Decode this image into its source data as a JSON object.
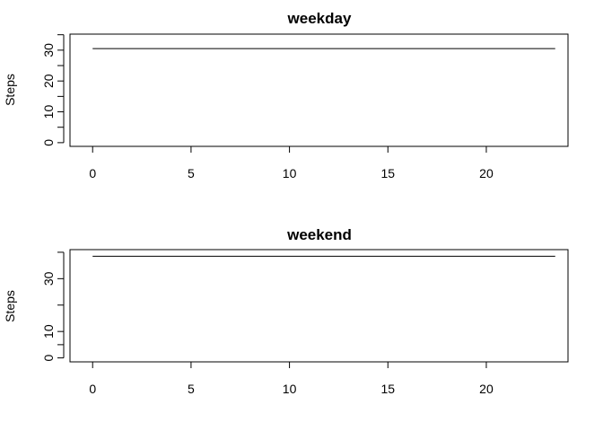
{
  "chart_data": [
    {
      "type": "line",
      "title": "weekday",
      "xlabel": "",
      "ylabel": "Steps",
      "xlim": [
        -1.15,
        24.15
      ],
      "ylim": [
        -1.2,
        35.2
      ],
      "xticks": [
        0,
        5,
        10,
        15,
        20
      ],
      "xtick_labels": [
        "0",
        "5",
        "10",
        "15",
        "20"
      ],
      "yticks": [
        0,
        5,
        10,
        15,
        20,
        25,
        30,
        35
      ],
      "ytick_labels": [
        "0",
        "",
        "10",
        "",
        "20",
        "",
        "30",
        ""
      ],
      "grid": false,
      "x": [
        0,
        23.5
      ],
      "y": [
        30.5,
        30.5
      ]
    },
    {
      "type": "line",
      "title": "weekend",
      "xlabel": "",
      "ylabel": "Steps",
      "xlim": [
        -1.15,
        24.15
      ],
      "ylim": [
        -1.5,
        41.0
      ],
      "xticks": [
        0,
        5,
        10,
        15,
        20
      ],
      "xtick_labels": [
        "0",
        "5",
        "10",
        "15",
        "20"
      ],
      "yticks": [
        0,
        5,
        10,
        20,
        30,
        40
      ],
      "ytick_labels": [
        "0",
        "",
        "10",
        "",
        "30",
        ""
      ],
      "grid": false,
      "x": [
        0,
        23.5
      ],
      "y": [
        38.5,
        38.5
      ]
    }
  ]
}
